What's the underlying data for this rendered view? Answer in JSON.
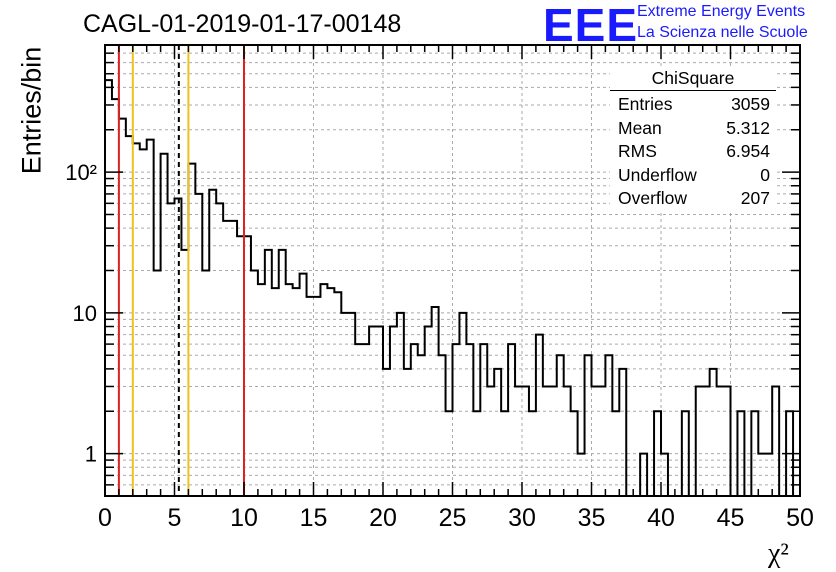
{
  "title": "CAGL-01-2019-01-17-00148",
  "logo": {
    "mark": "EEE",
    "line1": "Extreme Energy Events",
    "line2": "La Scienza nelle Scuole",
    "color": "#1a1aff"
  },
  "stats_box": {
    "name": "ChiSquare",
    "rows": [
      {
        "label": "Entries",
        "value": "3059"
      },
      {
        "label": "Mean",
        "value": "5.312"
      },
      {
        "label": "RMS",
        "value": "6.954"
      },
      {
        "label": "Underflow",
        "value": "0"
      },
      {
        "label": "Overflow",
        "value": "207"
      }
    ]
  },
  "chart_data": {
    "type": "bar",
    "histogram": true,
    "title": "CAGL-01-2019-01-17-00148",
    "xlabel": "χ²",
    "ylabel": "Entries/bin",
    "xlim": [
      0,
      50
    ],
    "ylim": [
      0.5,
      800
    ],
    "ylog": true,
    "grid": true,
    "bin_width": 0.5,
    "x_ticks": [
      "0",
      "5",
      "10",
      "15",
      "20",
      "25",
      "30",
      "35",
      "40",
      "45",
      "50"
    ],
    "y_ticks": [
      "1",
      "10",
      "10²"
    ],
    "values": [
      450,
      330,
      240,
      180,
      160,
      145,
      170,
      20,
      135,
      60,
      65,
      28,
      115,
      70,
      20,
      75,
      60,
      45,
      45,
      35,
      35,
      20,
      16,
      28,
      15,
      28,
      16,
      15,
      19,
      13,
      13,
      16,
      15,
      14,
      10,
      10,
      6,
      6,
      8,
      8,
      4,
      8,
      10,
      4,
      6,
      5,
      8,
      11,
      5,
      2,
      6,
      10,
      6,
      2,
      6,
      3,
      4,
      2,
      6,
      3,
      3,
      2,
      7,
      3,
      3,
      5,
      3,
      2,
      1,
      5,
      3,
      3,
      5,
      2,
      4,
      0.3,
      0.3,
      1,
      0.3,
      2,
      1,
      0.3,
      0.3,
      2,
      0.3,
      3,
      3,
      4,
      3,
      3,
      0.3,
      2,
      0.3,
      2,
      1,
      1,
      3,
      0.3,
      2,
      0.3
    ],
    "vertical_lines": [
      {
        "x": 1.0,
        "color": "#dd2222",
        "style": "solid"
      },
      {
        "x": 2.0,
        "color": "#f0c020",
        "style": "solid"
      },
      {
        "x": 5.312,
        "color": "#000000",
        "style": "dashed"
      },
      {
        "x": 6.0,
        "color": "#f0c020",
        "style": "solid"
      },
      {
        "x": 10.0,
        "color": "#dd2222",
        "style": "solid"
      }
    ]
  }
}
